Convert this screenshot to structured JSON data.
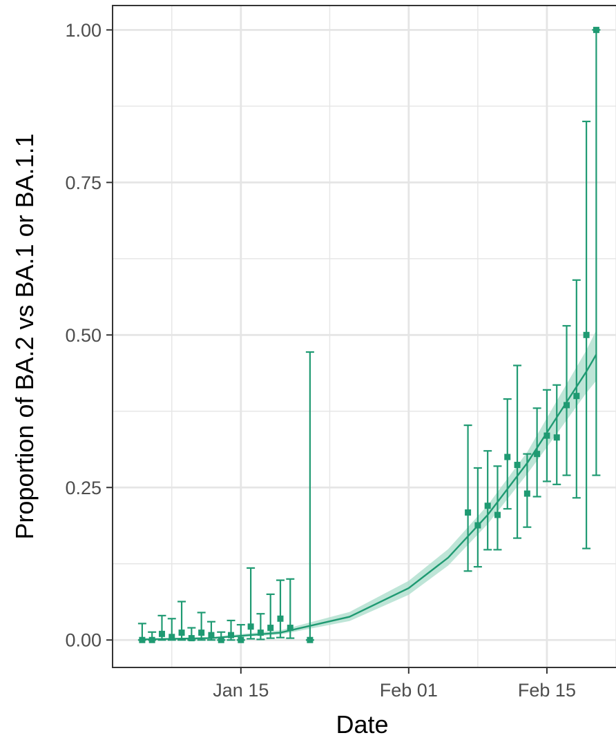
{
  "colors": {
    "series": "#1f9a72",
    "ribbon": "#a8dcc9",
    "grid": "#e5e5e5",
    "panel_border": "#333333",
    "tick_text": "#4d4d4d"
  },
  "chart_data": {
    "type": "scatter",
    "xlabel": "Date",
    "ylabel": "Proportion of BA.2 vs BA.1 or BA.1.1",
    "x_axis": {
      "type": "date",
      "range": [
        "2022-01-02",
        "2022-02-22"
      ],
      "ticks": [
        {
          "date": "2022-01-15",
          "label": "Jan 15"
        },
        {
          "date": "2022-02-01",
          "label": "Feb 01"
        },
        {
          "date": "2022-02-15",
          "label": "Feb 15"
        }
      ],
      "minor_ticks": [
        "2022-01-08",
        "2022-01-24",
        "2022-02-08",
        "2022-02-22"
      ]
    },
    "y_axis": {
      "range": [
        -0.045,
        1.04
      ],
      "ticks": [
        {
          "value": 0.0,
          "label": "0.00"
        },
        {
          "value": 0.25,
          "label": "0.25"
        },
        {
          "value": 0.5,
          "label": "0.50"
        },
        {
          "value": 0.75,
          "label": "0.75"
        },
        {
          "value": 1.0,
          "label": "1.00"
        }
      ],
      "minor_ticks": [
        0.125,
        0.375,
        0.625,
        0.875
      ]
    },
    "grid": true,
    "legend": "none",
    "points": [
      {
        "date": "2022-01-05",
        "y": 0.0,
        "lower": 0.0,
        "upper": 0.027
      },
      {
        "date": "2022-01-06",
        "y": 0.0,
        "lower": 0.0,
        "upper": 0.013
      },
      {
        "date": "2022-01-07",
        "y": 0.01,
        "lower": 0.0,
        "upper": 0.04
      },
      {
        "date": "2022-01-08",
        "y": 0.005,
        "lower": 0.0,
        "upper": 0.035
      },
      {
        "date": "2022-01-09",
        "y": 0.012,
        "lower": 0.0,
        "upper": 0.063
      },
      {
        "date": "2022-01-10",
        "y": 0.003,
        "lower": 0.0,
        "upper": 0.02
      },
      {
        "date": "2022-01-11",
        "y": 0.012,
        "lower": 0.0,
        "upper": 0.045
      },
      {
        "date": "2022-01-12",
        "y": 0.008,
        "lower": 0.0,
        "upper": 0.03
      },
      {
        "date": "2022-01-13",
        "y": 0.0,
        "lower": 0.0,
        "upper": 0.013
      },
      {
        "date": "2022-01-14",
        "y": 0.008,
        "lower": 0.0,
        "upper": 0.032
      },
      {
        "date": "2022-01-15",
        "y": 0.0,
        "lower": 0.0,
        "upper": 0.025
      },
      {
        "date": "2022-01-16",
        "y": 0.022,
        "lower": 0.002,
        "upper": 0.118
      },
      {
        "date": "2022-01-17",
        "y": 0.012,
        "lower": 0.001,
        "upper": 0.043
      },
      {
        "date": "2022-01-18",
        "y": 0.02,
        "lower": 0.003,
        "upper": 0.075
      },
      {
        "date": "2022-01-19",
        "y": 0.035,
        "lower": 0.004,
        "upper": 0.098
      },
      {
        "date": "2022-01-20",
        "y": 0.02,
        "lower": 0.003,
        "upper": 0.1
      },
      {
        "date": "2022-01-22",
        "y": 0.0,
        "lower": 0.0,
        "upper": 0.472
      },
      {
        "date": "2022-02-07",
        "y": 0.209,
        "lower": 0.113,
        "upper": 0.352
      },
      {
        "date": "2022-02-08",
        "y": 0.188,
        "lower": 0.12,
        "upper": 0.282
      },
      {
        "date": "2022-02-09",
        "y": 0.22,
        "lower": 0.148,
        "upper": 0.31
      },
      {
        "date": "2022-02-10",
        "y": 0.205,
        "lower": 0.148,
        "upper": 0.285
      },
      {
        "date": "2022-02-11",
        "y": 0.3,
        "lower": 0.215,
        "upper": 0.395
      },
      {
        "date": "2022-02-12",
        "y": 0.287,
        "lower": 0.167,
        "upper": 0.45
      },
      {
        "date": "2022-02-13",
        "y": 0.24,
        "lower": 0.185,
        "upper": 0.305
      },
      {
        "date": "2022-02-14",
        "y": 0.305,
        "lower": 0.235,
        "upper": 0.38
      },
      {
        "date": "2022-02-15",
        "y": 0.335,
        "lower": 0.26,
        "upper": 0.41
      },
      {
        "date": "2022-02-16",
        "y": 0.332,
        "lower": 0.255,
        "upper": 0.418
      },
      {
        "date": "2022-02-17",
        "y": 0.385,
        "lower": 0.27,
        "upper": 0.515
      },
      {
        "date": "2022-02-18",
        "y": 0.4,
        "lower": 0.233,
        "upper": 0.59
      },
      {
        "date": "2022-02-19",
        "y": 0.5,
        "lower": 0.15,
        "upper": 0.85
      },
      {
        "date": "2022-02-20",
        "y": 1.0,
        "lower": 0.27,
        "upper": 1.0
      }
    ],
    "fit_curve": {
      "description": "logistic fit with confidence ribbon",
      "x": [
        "2022-01-05",
        "2022-01-12",
        "2022-01-19",
        "2022-01-26",
        "2022-02-01",
        "2022-02-05",
        "2022-02-09",
        "2022-02-13",
        "2022-02-16",
        "2022-02-19",
        "2022-02-20"
      ],
      "y": [
        0.001,
        0.003,
        0.012,
        0.038,
        0.085,
        0.135,
        0.205,
        0.29,
        0.365,
        0.44,
        0.468
      ],
      "lower": [
        0.0,
        0.002,
        0.009,
        0.031,
        0.074,
        0.122,
        0.19,
        0.272,
        0.338,
        0.405,
        0.425
      ],
      "upper": [
        0.002,
        0.005,
        0.016,
        0.046,
        0.097,
        0.149,
        0.221,
        0.308,
        0.392,
        0.475,
        0.508
      ]
    }
  }
}
